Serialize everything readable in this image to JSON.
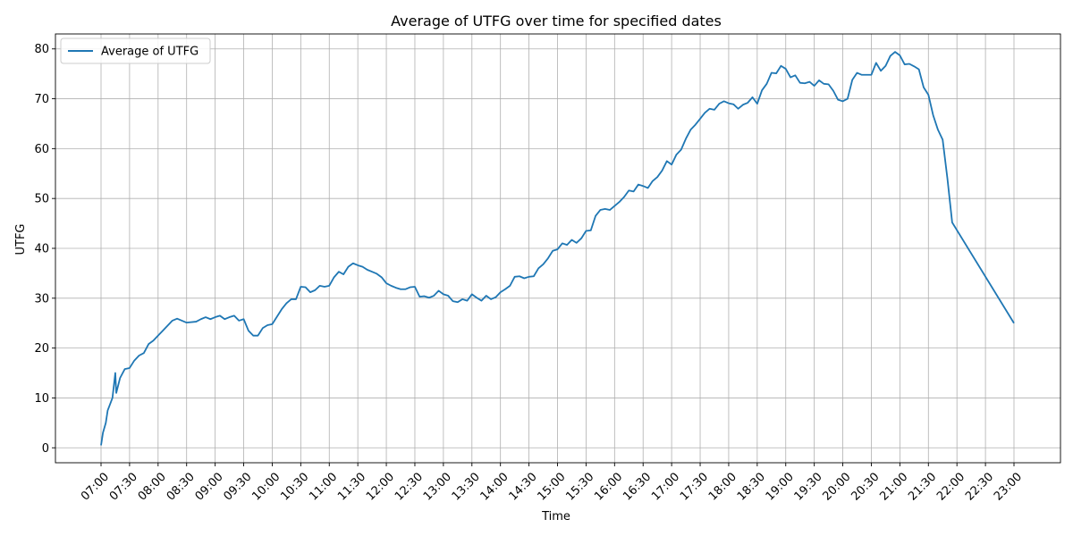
{
  "chart_data": {
    "type": "line",
    "title": "Average of UTFG over time for specified dates",
    "xlabel": "Time",
    "ylabel": "UTFG",
    "ylim": [
      -3,
      83
    ],
    "yticks": [
      0,
      10,
      20,
      30,
      40,
      50,
      60,
      70,
      80
    ],
    "xticks": [
      "07:00",
      "07:30",
      "08:00",
      "08:30",
      "09:00",
      "09:30",
      "10:00",
      "10:30",
      "11:00",
      "11:30",
      "12:00",
      "12:30",
      "13:00",
      "13:30",
      "14:00",
      "14:30",
      "15:00",
      "15:30",
      "16:00",
      "16:30",
      "17:00",
      "17:30",
      "18:00",
      "18:30",
      "19:00",
      "19:30",
      "20:00",
      "20:30",
      "21:00",
      "21:30",
      "22:00",
      "22:30",
      "23:00"
    ],
    "grid": true,
    "legend": "upper-left",
    "color": "#1f77b4",
    "series": [
      {
        "name": "Average of UTFG",
        "points": [
          [
            "07:00",
            0.5
          ],
          [
            "07:02",
            3
          ],
          [
            "07:05",
            5
          ],
          [
            "07:07",
            7.5
          ],
          [
            "07:10",
            9
          ],
          [
            "07:12",
            10
          ],
          [
            "07:15",
            15
          ],
          [
            "07:16",
            11
          ],
          [
            "07:20",
            14
          ],
          [
            "07:25",
            15.8
          ],
          [
            "07:30",
            16
          ],
          [
            "07:35",
            17.5
          ],
          [
            "07:40",
            18.5
          ],
          [
            "07:45",
            19
          ],
          [
            "07:50",
            20.8
          ],
          [
            "07:55",
            21.5
          ],
          [
            "08:00",
            22.5
          ],
          [
            "08:05",
            23.5
          ],
          [
            "08:10",
            24.5
          ],
          [
            "08:15",
            25.5
          ],
          [
            "08:20",
            25.9
          ],
          [
            "08:25",
            25.5
          ],
          [
            "08:30",
            25.1
          ],
          [
            "08:40",
            25.3
          ],
          [
            "08:45",
            25.8
          ],
          [
            "08:50",
            26.2
          ],
          [
            "08:55",
            25.8
          ],
          [
            "09:00",
            26.2
          ],
          [
            "09:05",
            26.5
          ],
          [
            "09:10",
            25.8
          ],
          [
            "09:15",
            26.2
          ],
          [
            "09:20",
            26.5
          ],
          [
            "09:25",
            25.5
          ],
          [
            "09:30",
            25.8
          ],
          [
            "09:35",
            23.5
          ],
          [
            "09:40",
            22.5
          ],
          [
            "09:45",
            22.5
          ],
          [
            "09:50",
            24
          ],
          [
            "09:55",
            24.6
          ],
          [
            "10:00",
            24.8
          ],
          [
            "10:05",
            26.3
          ],
          [
            "10:10",
            27.8
          ],
          [
            "10:15",
            29
          ],
          [
            "10:20",
            29.8
          ],
          [
            "10:25",
            29.8
          ],
          [
            "10:30",
            32.3
          ],
          [
            "10:35",
            32.2
          ],
          [
            "10:40",
            31.2
          ],
          [
            "10:45",
            31.6
          ],
          [
            "10:50",
            32.5
          ],
          [
            "10:55",
            32.3
          ],
          [
            "11:00",
            32.5
          ],
          [
            "11:05",
            34.2
          ],
          [
            "11:10",
            35.3
          ],
          [
            "11:15",
            34.8
          ],
          [
            "11:20",
            36.3
          ],
          [
            "11:25",
            37
          ],
          [
            "11:30",
            36.6
          ],
          [
            "11:35",
            36.3
          ],
          [
            "11:40",
            35.7
          ],
          [
            "11:45",
            35.3
          ],
          [
            "11:50",
            34.9
          ],
          [
            "11:55",
            34.2
          ],
          [
            "12:00",
            33
          ],
          [
            "12:05",
            32.5
          ],
          [
            "12:10",
            32.1
          ],
          [
            "12:15",
            31.8
          ],
          [
            "12:20",
            31.8
          ],
          [
            "12:25",
            32.2
          ],
          [
            "12:30",
            32.3
          ],
          [
            "12:35",
            30.3
          ],
          [
            "12:40",
            30.4
          ],
          [
            "12:45",
            30.1
          ],
          [
            "12:50",
            30.5
          ],
          [
            "12:55",
            31.5
          ],
          [
            "13:00",
            30.8
          ],
          [
            "13:05",
            30.5
          ],
          [
            "13:10",
            29.4
          ],
          [
            "13:15",
            29.2
          ],
          [
            "13:20",
            29.8
          ],
          [
            "13:25",
            29.5
          ],
          [
            "13:30",
            30.8
          ],
          [
            "13:35",
            30.1
          ],
          [
            "13:40",
            29.5
          ],
          [
            "13:45",
            30.5
          ],
          [
            "13:50",
            29.8
          ],
          [
            "13:55",
            30.2
          ],
          [
            "14:00",
            31.2
          ],
          [
            "14:05",
            31.8
          ],
          [
            "14:10",
            32.5
          ],
          [
            "14:15",
            34.3
          ],
          [
            "14:20",
            34.4
          ],
          [
            "14:25",
            34
          ],
          [
            "14:30",
            34.3
          ],
          [
            "14:35",
            34.4
          ],
          [
            "14:40",
            36
          ],
          [
            "14:45",
            36.8
          ],
          [
            "14:50",
            38
          ],
          [
            "14:55",
            39.5
          ],
          [
            "15:00",
            39.8
          ],
          [
            "15:05",
            41
          ],
          [
            "15:10",
            40.7
          ],
          [
            "15:15",
            41.7
          ],
          [
            "15:20",
            41.1
          ],
          [
            "15:25",
            42
          ],
          [
            "15:30",
            43.5
          ],
          [
            "15:35",
            43.6
          ],
          [
            "15:40",
            46.5
          ],
          [
            "15:45",
            47.7
          ],
          [
            "15:50",
            47.9
          ],
          [
            "15:55",
            47.7
          ],
          [
            "16:00",
            48.5
          ],
          [
            "16:05",
            49.3
          ],
          [
            "16:10",
            50.3
          ],
          [
            "16:15",
            51.6
          ],
          [
            "16:20",
            51.4
          ],
          [
            "16:25",
            52.8
          ],
          [
            "16:30",
            52.5
          ],
          [
            "16:35",
            52.1
          ],
          [
            "16:40",
            53.5
          ],
          [
            "16:45",
            54.3
          ],
          [
            "16:50",
            55.6
          ],
          [
            "16:55",
            57.5
          ],
          [
            "17:00",
            56.8
          ],
          [
            "17:05",
            58.8
          ],
          [
            "17:10",
            59.8
          ],
          [
            "17:15",
            62
          ],
          [
            "17:20",
            63.8
          ],
          [
            "17:25",
            64.8
          ],
          [
            "17:30",
            66
          ],
          [
            "17:35",
            67.2
          ],
          [
            "17:40",
            68
          ],
          [
            "17:45",
            67.8
          ],
          [
            "17:50",
            69
          ],
          [
            "17:55",
            69.5
          ],
          [
            "18:00",
            69.1
          ],
          [
            "18:05",
            68.9
          ],
          [
            "18:10",
            68
          ],
          [
            "18:15",
            68.8
          ],
          [
            "18:20",
            69.2
          ],
          [
            "18:25",
            70.3
          ],
          [
            "18:30",
            69
          ],
          [
            "18:35",
            71.7
          ],
          [
            "18:40",
            73
          ],
          [
            "18:45",
            75.2
          ],
          [
            "18:50",
            75.1
          ],
          [
            "18:55",
            76.6
          ],
          [
            "19:00",
            76
          ],
          [
            "19:05",
            74.3
          ],
          [
            "19:10",
            74.7
          ],
          [
            "19:15",
            73.2
          ],
          [
            "19:20",
            73.1
          ],
          [
            "19:25",
            73.4
          ],
          [
            "19:30",
            72.6
          ],
          [
            "19:35",
            73.7
          ],
          [
            "19:40",
            73
          ],
          [
            "19:45",
            72.9
          ],
          [
            "19:50",
            71.6
          ],
          [
            "19:55",
            69.8
          ],
          [
            "20:00",
            69.5
          ],
          [
            "20:05",
            70
          ],
          [
            "20:10",
            73.8
          ],
          [
            "20:15",
            75.2
          ],
          [
            "20:20",
            74.8
          ],
          [
            "20:25",
            74.8
          ],
          [
            "20:30",
            74.8
          ],
          [
            "20:35",
            77.2
          ],
          [
            "20:40",
            75.6
          ],
          [
            "20:45",
            76.6
          ],
          [
            "20:50",
            78.6
          ],
          [
            "20:55",
            79.4
          ],
          [
            "21:00",
            78.7
          ],
          [
            "21:05",
            76.9
          ],
          [
            "21:10",
            77
          ],
          [
            "21:15",
            76.5
          ],
          [
            "21:20",
            75.9
          ],
          [
            "21:25",
            72.3
          ],
          [
            "21:30",
            70.8
          ],
          [
            "21:35",
            66.7
          ],
          [
            "21:40",
            63.8
          ],
          [
            "21:45",
            61.8
          ],
          [
            "21:50",
            54
          ],
          [
            "21:55",
            45.2
          ],
          [
            "23:00",
            25
          ]
        ]
      }
    ]
  }
}
